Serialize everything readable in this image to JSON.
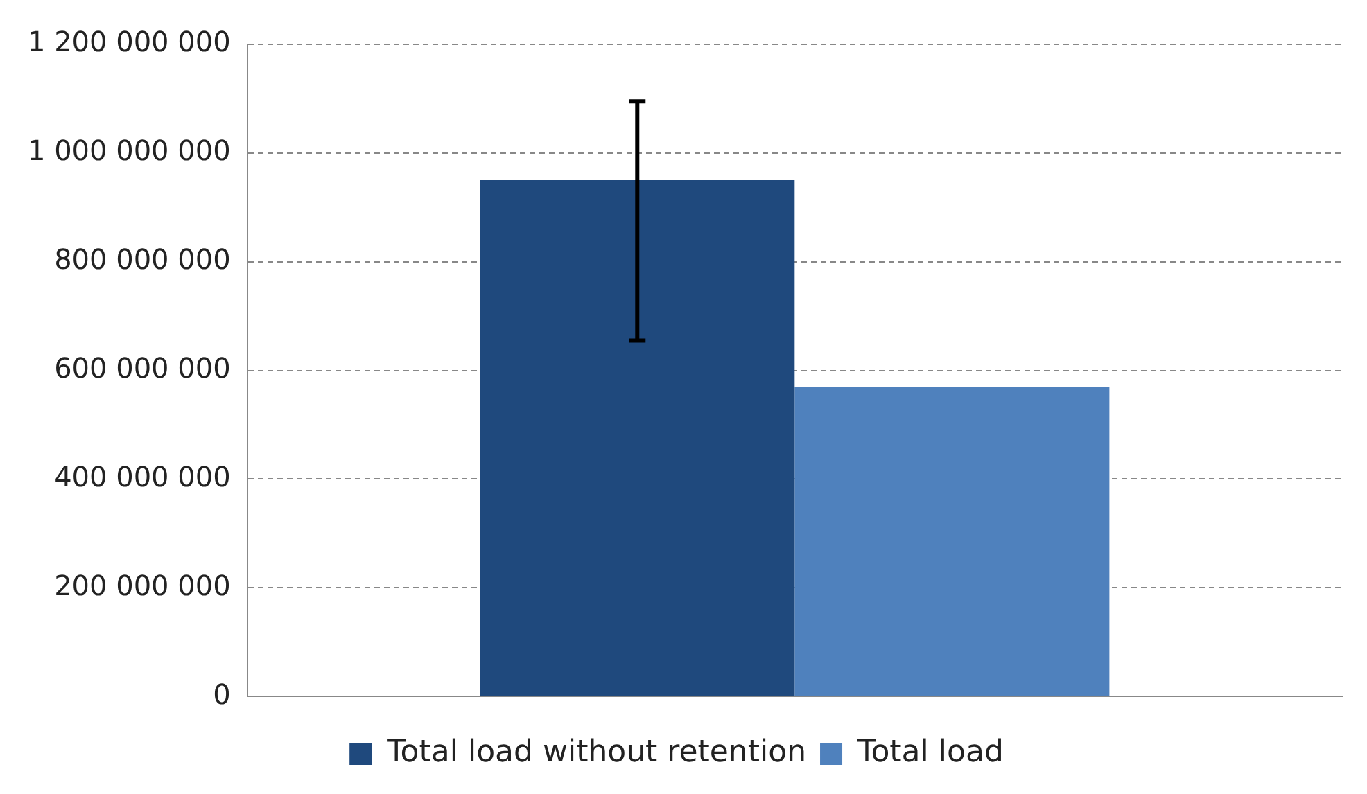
{
  "chart_data": {
    "type": "bar",
    "categories": [
      null
    ],
    "series": [
      {
        "name": "Total load without retention",
        "color": "#1f497d",
        "values": [
          950000000
        ],
        "errors": [
          [
            655000000,
            1095000000
          ]
        ]
      },
      {
        "name": "Total load",
        "color": "#4f81bd",
        "values": [
          570000000
        ]
      }
    ],
    "ylim": [
      0,
      1200000000
    ],
    "yticks": [
      {
        "value": 0,
        "label": "0"
      },
      {
        "value": 200000000,
        "label": "200 000 000"
      },
      {
        "value": 400000000,
        "label": "400 000 000"
      },
      {
        "value": 600000000,
        "label": "600 000 000"
      },
      {
        "value": 800000000,
        "label": "800 000 000"
      },
      {
        "value": 1000000000,
        "label": "1 000 000 000"
      },
      {
        "value": 1200000000,
        "label": "1 200 000 000"
      }
    ],
    "grid": "y",
    "legend": "bottom"
  }
}
